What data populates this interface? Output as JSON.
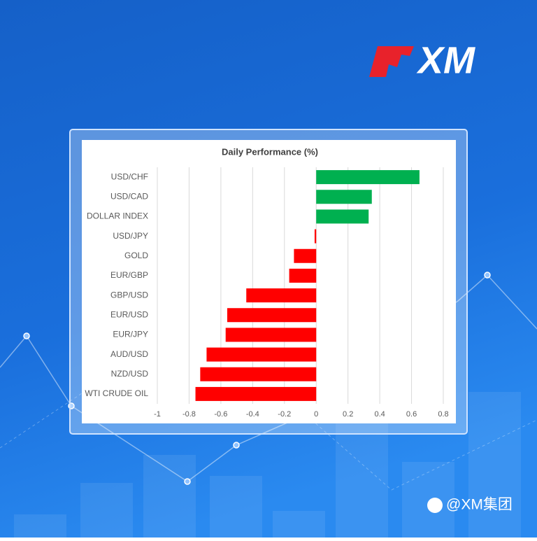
{
  "chart_data": {
    "type": "bar",
    "orientation": "horizontal",
    "title": "Daily Performance (%)",
    "categories": [
      "USD/CHF",
      "USD/CAD",
      "DOLLAR INDEX",
      "USD/JPY",
      "GOLD",
      "EUR/GBP",
      "GBP/USD",
      "EUR/USD",
      "EUR/JPY",
      "AUD/USD",
      "NZD/USD",
      "WTI CRUDE OIL"
    ],
    "values": [
      0.65,
      0.35,
      0.33,
      -0.01,
      -0.14,
      -0.17,
      -0.44,
      -0.56,
      -0.57,
      -0.69,
      -0.73,
      -0.76
    ],
    "colors": [
      "#00b050",
      "#00b050",
      "#00b050",
      "#ff0000",
      "#ff0000",
      "#ff0000",
      "#ff0000",
      "#ff0000",
      "#ff0000",
      "#ff0000",
      "#ff0000",
      "#ff0000"
    ],
    "xlim": [
      -1,
      0.8
    ],
    "xticks": [
      -1,
      -0.8,
      -0.6,
      -0.4,
      -0.2,
      0,
      0.2,
      0.4,
      0.6,
      0.8
    ],
    "grid": true
  },
  "branding": {
    "logo": "XM",
    "watermark": "@XM集团"
  }
}
